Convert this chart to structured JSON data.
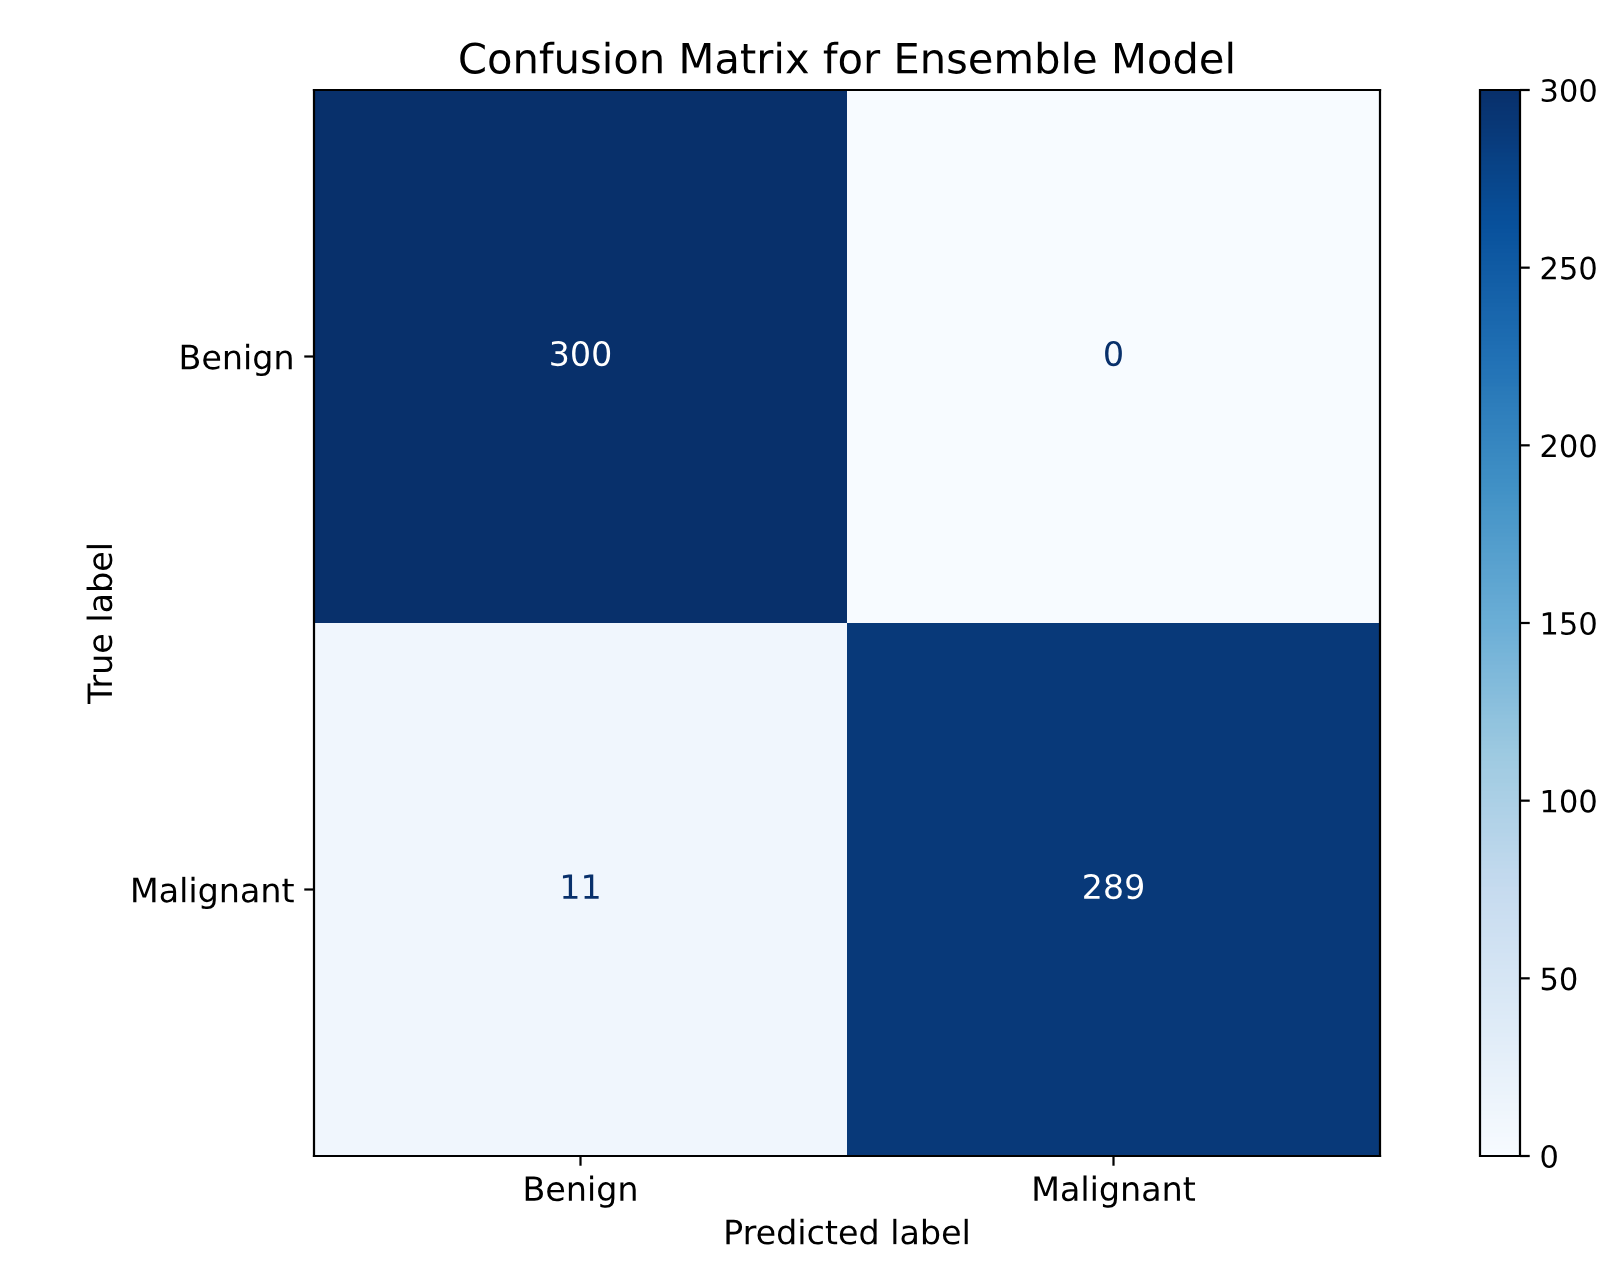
{
  "chart_data": {
    "type": "heatmap",
    "title": "Confusion Matrix for Ensemble Model",
    "xlabel": "Predicted label",
    "ylabel": "True label",
    "categories": [
      "Benign",
      "Malignant"
    ],
    "y_categories": [
      "Benign",
      "Malignant"
    ],
    "cells": [
      [
        300,
        0
      ],
      [
        11,
        289
      ]
    ],
    "clim": [
      0,
      300
    ],
    "cticks": [
      0,
      50,
      100,
      150,
      200,
      250,
      300
    ],
    "data_labels": true,
    "grid": false
  }
}
